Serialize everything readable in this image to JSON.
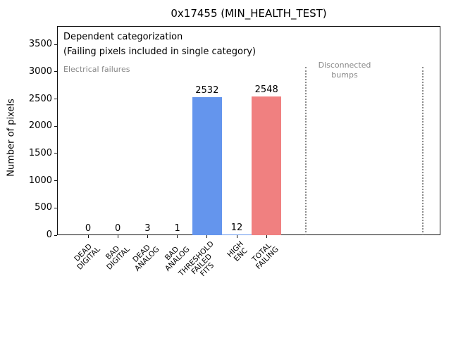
{
  "figure": {
    "title": "0x17455 (MIN_HEALTH_TEST)"
  },
  "chart_data": {
    "type": "bar",
    "title": "0x17455 (MIN_HEALTH_TEST)",
    "xlabel": "",
    "ylabel": "Number of pixels",
    "categories": [
      "DEAD\nDIGITAL",
      "BAD\nDIGITAL",
      "DEAD\nANALOG",
      "BAD\nANALOG",
      "THRESHOLD\nFAILED\nFITS",
      "HIGH\nENC",
      "TOTAL\nFAILING"
    ],
    "values": [
      0,
      0,
      3,
      1,
      2532,
      12,
      2548
    ],
    "bar_value_labels": [
      "0",
      "0",
      "3",
      "1",
      "2532",
      "12",
      "2548"
    ],
    "bar_colors": [
      "#6495ED",
      "#6495ED",
      "#6495ED",
      "#6495ED",
      "#6495ED",
      "#6495ED",
      "#F08080"
    ],
    "yticks": [
      0,
      500,
      1000,
      1500,
      2000,
      2500,
      3000,
      3500
    ],
    "ylim": [
      0,
      3870
    ],
    "grid": false,
    "legend": "none",
    "annotations": [
      {
        "text": "Dependent categorization",
        "color": "#000000"
      },
      {
        "text": "(Failing pixels included in single category)",
        "color": "#000000"
      },
      {
        "text": "Electrical failures",
        "color": "#878787"
      },
      {
        "text": "Disconnected\nbumps",
        "color": "#878787"
      }
    ],
    "separators": {
      "style": "dotted",
      "color": "#8c8c8c",
      "description": "two vertical dotted lines bounding the Disconnected bumps region on the right side of the plot"
    }
  }
}
